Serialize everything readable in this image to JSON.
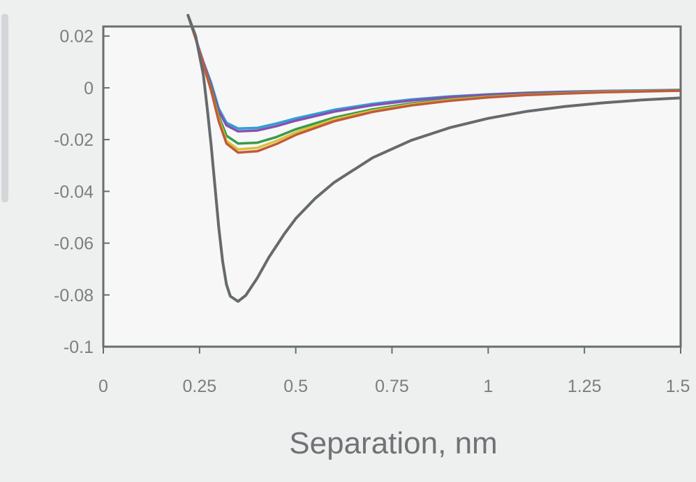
{
  "chart_data": {
    "type": "line",
    "title": "",
    "xlabel": "Separation, nm",
    "ylabel": "",
    "xlim": [
      0,
      1.5
    ],
    "ylim": [
      -0.1,
      0.028
    ],
    "xticks": [
      0,
      0.25,
      0.5,
      0.75,
      1,
      1.25,
      1.5
    ],
    "xtick_labels": [
      "0",
      "0.25",
      "0.5",
      "0.75",
      "1",
      "1.25",
      "1.5"
    ],
    "yticks": [
      0.02,
      0,
      -0.02,
      -0.04,
      -0.06,
      -0.08,
      -0.1
    ],
    "ytick_labels": [
      "0.02",
      "0",
      "-0.02",
      "-0.04",
      "-0.06",
      "-0.08",
      "-0.1"
    ],
    "grid": false,
    "legend": false,
    "series": [
      {
        "color": "#2e9fd6",
        "x": [
          0.22,
          0.24,
          0.26,
          0.28,
          0.3,
          0.32,
          0.35,
          0.4,
          0.45,
          0.5,
          0.6,
          0.7,
          0.8,
          0.9,
          1.0,
          1.1,
          1.2,
          1.3,
          1.4,
          1.5
        ],
        "y": [
          0.028,
          0.019,
          0.01,
          0.002,
          -0.008,
          -0.0135,
          -0.0157,
          -0.0155,
          -0.0138,
          -0.0118,
          -0.0085,
          -0.0062,
          -0.0045,
          -0.0033,
          -0.0025,
          -0.0019,
          -0.0015,
          -0.0012,
          -0.001,
          -0.0008
        ]
      },
      {
        "color": "#8a4fb0",
        "x": [
          0.22,
          0.24,
          0.26,
          0.28,
          0.3,
          0.32,
          0.35,
          0.4,
          0.45,
          0.5,
          0.6,
          0.7,
          0.8,
          0.9,
          1.0,
          1.1,
          1.2,
          1.3,
          1.4,
          1.5
        ],
        "y": [
          0.028,
          0.019,
          0.01,
          0.001,
          -0.009,
          -0.0145,
          -0.0168,
          -0.0165,
          -0.0148,
          -0.0127,
          -0.0092,
          -0.0067,
          -0.0049,
          -0.0036,
          -0.0027,
          -0.002,
          -0.0016,
          -0.0013,
          -0.0011,
          -0.0009
        ]
      },
      {
        "color": "#3a9a4a",
        "x": [
          0.22,
          0.24,
          0.26,
          0.28,
          0.3,
          0.32,
          0.35,
          0.4,
          0.45,
          0.5,
          0.6,
          0.7,
          0.8,
          0.9,
          1.0,
          1.1,
          1.2,
          1.3,
          1.4,
          1.5
        ],
        "y": [
          0.028,
          0.019,
          0.009,
          0.0,
          -0.011,
          -0.0185,
          -0.0215,
          -0.0212,
          -0.019,
          -0.016,
          -0.0115,
          -0.0083,
          -0.006,
          -0.0044,
          -0.0033,
          -0.0025,
          -0.0019,
          -0.0015,
          -0.0012,
          -0.001
        ]
      },
      {
        "color": "#d9c23a",
        "x": [
          0.22,
          0.24,
          0.26,
          0.28,
          0.3,
          0.32,
          0.35,
          0.4,
          0.45,
          0.5,
          0.6,
          0.7,
          0.8,
          0.9,
          1.0,
          1.1,
          1.2,
          1.3,
          1.4,
          1.5
        ],
        "y": [
          0.028,
          0.019,
          0.009,
          -0.001,
          -0.012,
          -0.0205,
          -0.0238,
          -0.0232,
          -0.0205,
          -0.0172,
          -0.0122,
          -0.0088,
          -0.0064,
          -0.0047,
          -0.0035,
          -0.0027,
          -0.0021,
          -0.0016,
          -0.0013,
          -0.0011
        ]
      },
      {
        "color": "#c25a3a",
        "x": [
          0.22,
          0.24,
          0.26,
          0.28,
          0.3,
          0.32,
          0.35,
          0.4,
          0.45,
          0.5,
          0.6,
          0.7,
          0.8,
          0.9,
          1.0,
          1.1,
          1.2,
          1.3,
          1.4,
          1.5
        ],
        "y": [
          0.028,
          0.019,
          0.009,
          -0.001,
          -0.013,
          -0.0215,
          -0.025,
          -0.0245,
          -0.0217,
          -0.0182,
          -0.0129,
          -0.0093,
          -0.0068,
          -0.005,
          -0.0037,
          -0.0028,
          -0.0022,
          -0.0017,
          -0.0014,
          -0.0011
        ]
      },
      {
        "color": "#666a6d",
        "x": [
          0.22,
          0.24,
          0.26,
          0.27,
          0.28,
          0.29,
          0.3,
          0.31,
          0.32,
          0.33,
          0.35,
          0.37,
          0.4,
          0.43,
          0.47,
          0.5,
          0.55,
          0.6,
          0.7,
          0.8,
          0.9,
          1.0,
          1.1,
          1.2,
          1.3,
          1.4,
          1.5
        ],
        "y": [
          0.028,
          0.02,
          0.005,
          -0.008,
          -0.022,
          -0.038,
          -0.054,
          -0.067,
          -0.076,
          -0.0805,
          -0.0825,
          -0.0802,
          -0.0735,
          -0.0655,
          -0.0565,
          -0.0505,
          -0.0428,
          -0.0365,
          -0.027,
          -0.0203,
          -0.0154,
          -0.0118,
          -0.0091,
          -0.0072,
          -0.0058,
          -0.0047,
          -0.0039
        ]
      }
    ]
  }
}
